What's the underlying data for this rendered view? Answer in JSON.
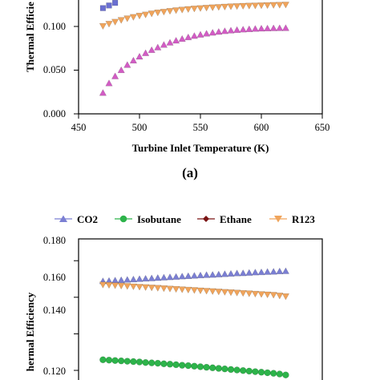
{
  "colors": {
    "CO2": "#7b7fd3",
    "Isobutane": "#2db34a",
    "Ethane": "#7a1414",
    "R123": "#f0a45b",
    "top_squares": "#6a6fd1",
    "top_triangles": "#d25cc4"
  },
  "chart_data": [
    {
      "type": "scatter",
      "title": "",
      "panel_label": "(a)",
      "xlabel": "Turbine Inlet Temperature (K)",
      "ylabel": "Thermal Efficie",
      "xlim": [
        450,
        650
      ],
      "ylim": [
        0.0,
        0.14
      ],
      "x_ticks": [
        "450",
        "500",
        "550",
        "600",
        "650"
      ],
      "y_ticks": [
        "0.000",
        "0.050",
        "0.100"
      ],
      "grid": false,
      "series": [
        {
          "marker": "square",
          "color_key": "top_squares",
          "x": [
            470,
            475,
            480
          ],
          "y": [
            0.121,
            0.124,
            0.127
          ]
        },
        {
          "marker": "triangle-down",
          "color_key": "R123",
          "x": [
            470,
            475,
            480,
            485,
            490,
            495,
            500,
            505,
            510,
            515,
            520,
            525,
            530,
            535,
            540,
            545,
            550,
            555,
            560,
            565,
            570,
            575,
            580,
            585,
            590,
            595,
            600,
            605,
            610,
            615,
            620
          ],
          "y": [
            0.1005,
            0.103,
            0.1053,
            0.1073,
            0.1092,
            0.1108,
            0.1123,
            0.1136,
            0.1148,
            0.1159,
            0.1168,
            0.1177,
            0.1185,
            0.1192,
            0.1198,
            0.1204,
            0.1209,
            0.1214,
            0.1218,
            0.1222,
            0.1226,
            0.1229,
            0.1232,
            0.1235,
            0.1237,
            0.1239,
            0.1241,
            0.1243,
            0.1245,
            0.1247,
            0.1249
          ]
        },
        {
          "marker": "triangle-up",
          "color_key": "top_triangles",
          "x": [
            470,
            475,
            480,
            485,
            490,
            495,
            500,
            505,
            510,
            515,
            520,
            525,
            530,
            535,
            540,
            545,
            550,
            555,
            560,
            565,
            570,
            575,
            580,
            585,
            590,
            595,
            600,
            605,
            610,
            615,
            620
          ],
          "y": [
            0.024,
            0.035,
            0.043,
            0.05,
            0.056,
            0.061,
            0.0655,
            0.0695,
            0.073,
            0.076,
            0.079,
            0.0815,
            0.0838,
            0.0858,
            0.0876,
            0.0892,
            0.0906,
            0.0918,
            0.0929,
            0.0939,
            0.0947,
            0.0954,
            0.096,
            0.0965,
            0.0969,
            0.0973,
            0.0976,
            0.0978,
            0.098,
            0.0981,
            0.0982
          ]
        }
      ]
    },
    {
      "type": "scatter",
      "title": "",
      "xlabel": "",
      "ylabel": "hermal Efficiency",
      "xlim": [
        450,
        650
      ],
      "ylim": [
        0.1,
        0.18
      ],
      "y_ticks": [
        "0.120",
        "0.140",
        "0.160",
        "0.180"
      ],
      "grid": false,
      "legend": {
        "placement": "top",
        "entries": [
          "CO2",
          "Isobutane",
          "Ethane",
          "R123"
        ]
      },
      "series": [
        {
          "name": "CO2",
          "marker": "triangle-up",
          "x": [
            470,
            475,
            480,
            485,
            490,
            495,
            500,
            505,
            510,
            515,
            520,
            525,
            530,
            535,
            540,
            545,
            550,
            555,
            560,
            565,
            570,
            575,
            580,
            585,
            590,
            595,
            600,
            605,
            610,
            615,
            620
          ],
          "y": [
            0.1688,
            0.169,
            0.1692,
            0.1694,
            0.1696,
            0.1698,
            0.17,
            0.1702,
            0.1704,
            0.1706,
            0.1708,
            0.171,
            0.1712,
            0.1714,
            0.1716,
            0.1718,
            0.172,
            0.1722,
            0.1723,
            0.1725,
            0.1727,
            0.1729,
            0.1731,
            0.1732,
            0.1734,
            0.1736,
            0.1737,
            0.1739,
            0.174,
            0.1742,
            0.1743
          ]
        },
        {
          "name": "Isobutane",
          "marker": "circle",
          "x": [
            470,
            475,
            480,
            485,
            490,
            495,
            500,
            505,
            510,
            515,
            520,
            525,
            530,
            535,
            540,
            545,
            550,
            555,
            560,
            565,
            570,
            575,
            580,
            585,
            590,
            595,
            600,
            605,
            610,
            615,
            620
          ],
          "y": [
            0.1258,
            0.1256,
            0.1254,
            0.1252,
            0.125,
            0.1248,
            0.1246,
            0.1243,
            0.1241,
            0.1239,
            0.1236,
            0.1234,
            0.1231,
            0.1228,
            0.1226,
            0.1223,
            0.122,
            0.1217,
            0.1214,
            0.1211,
            0.1208,
            0.1205,
            0.1202,
            0.1199,
            0.1196,
            0.1193,
            0.119,
            0.1187,
            0.1184,
            0.118,
            0.1175
          ]
        },
        {
          "name": "Ethane",
          "marker": "diamond",
          "x": [],
          "y": []
        },
        {
          "name": "R123",
          "marker": "triangle-down",
          "x": [
            470,
            475,
            480,
            485,
            490,
            495,
            500,
            505,
            510,
            515,
            520,
            525,
            530,
            535,
            540,
            545,
            550,
            555,
            560,
            565,
            570,
            575,
            580,
            585,
            590,
            595,
            600,
            605,
            610,
            615,
            620
          ],
          "y": [
            0.1669,
            0.1667,
            0.1665,
            0.1663,
            0.1661,
            0.1659,
            0.1657,
            0.1655,
            0.1653,
            0.1651,
            0.1649,
            0.1647,
            0.1645,
            0.1643,
            0.1641,
            0.1639,
            0.1637,
            0.1635,
            0.1633,
            0.1631,
            0.1629,
            0.1627,
            0.1625,
            0.1623,
            0.1621,
            0.1619,
            0.1617,
            0.1615,
            0.1613,
            0.1609,
            0.1605
          ]
        }
      ]
    }
  ]
}
